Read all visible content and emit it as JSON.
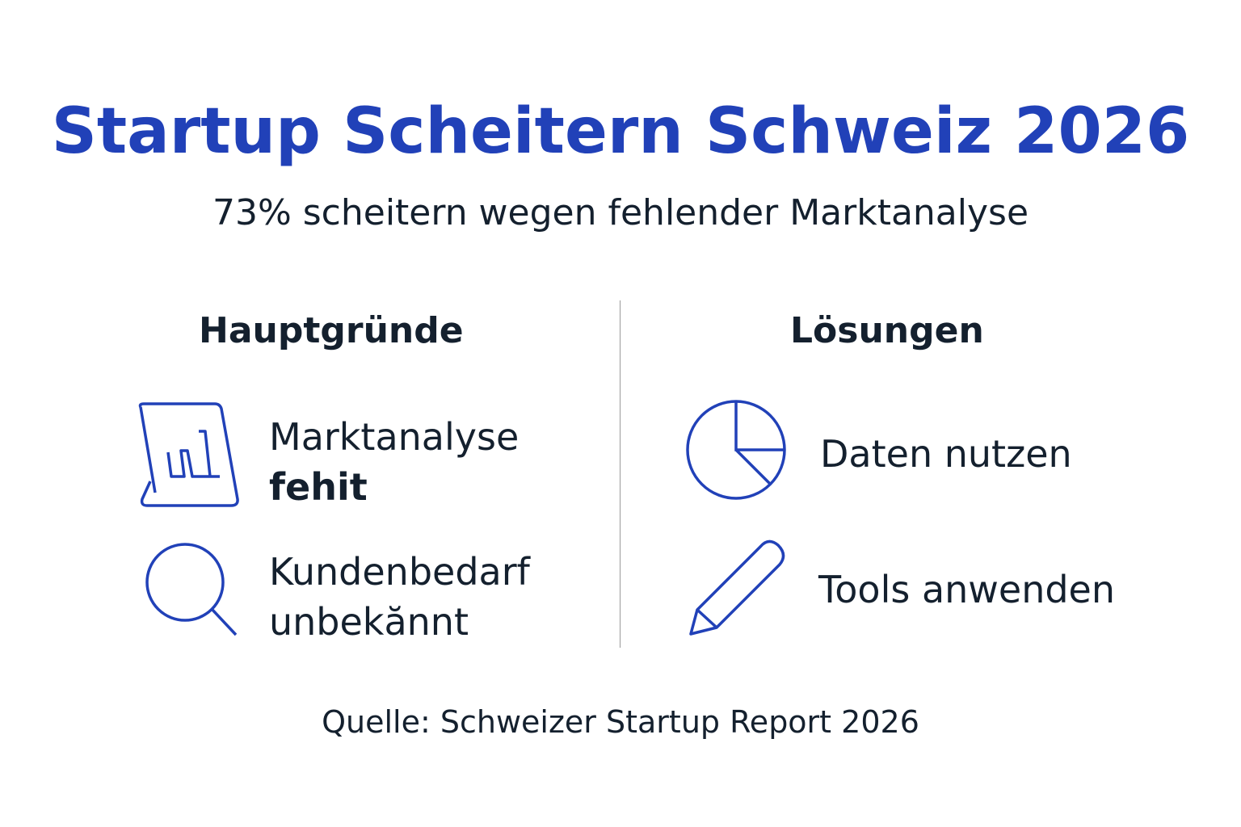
{
  "title": "Startup Scheitern Schweiz 2026",
  "subtitle": "73% scheitern wegen fehlender Marktanalyse",
  "left": {
    "heading": "Hauptgründe",
    "items": [
      {
        "icon": "chart-tablet-icon",
        "line1": "Marktanalyse",
        "line2": "fehit"
      },
      {
        "icon": "magnifier-icon",
        "line1": "Kundenbedarf",
        "line2": "unbekănnt"
      }
    ]
  },
  "right": {
    "heading": "Lösungen",
    "items": [
      {
        "icon": "pie-chart-icon",
        "label": "Daten nutzen"
      },
      {
        "icon": "pencil-icon",
        "label": "Tools anwenden"
      }
    ]
  },
  "source": "Quelle: Schweizer Startup Report 2026",
  "colors": {
    "accent": "#2141b8",
    "text": "#14202e"
  }
}
